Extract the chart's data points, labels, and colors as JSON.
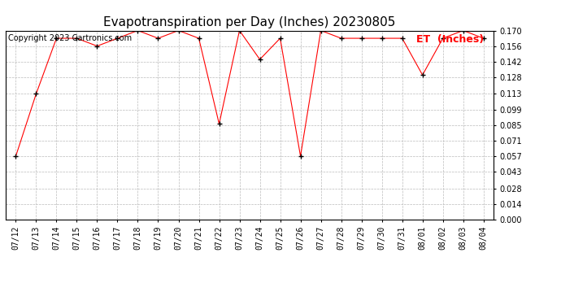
{
  "title": "Evapotranspiration per Day (Inches) 20230805",
  "copyright_text": "Copyright 2023 Cartronics.com",
  "legend_label": "ET  (Inches)",
  "dates": [
    "07/12",
    "07/13",
    "07/14",
    "07/15",
    "07/16",
    "07/17",
    "07/18",
    "07/19",
    "07/20",
    "07/21",
    "07/22",
    "07/23",
    "07/24",
    "07/25",
    "07/26",
    "07/27",
    "07/28",
    "07/29",
    "07/30",
    "07/31",
    "08/01",
    "08/02",
    "08/03",
    "08/04"
  ],
  "values": [
    0.057,
    0.113,
    0.163,
    0.163,
    0.156,
    0.163,
    0.17,
    0.163,
    0.17,
    0.163,
    0.086,
    0.17,
    0.144,
    0.163,
    0.057,
    0.17,
    0.163,
    0.163,
    0.163,
    0.163,
    0.13,
    0.163,
    0.17,
    0.163
  ],
  "line_color": "red",
  "marker": "+",
  "marker_color": "black",
  "ylim": [
    0.0,
    0.17
  ],
  "yticks": [
    0.0,
    0.014,
    0.028,
    0.043,
    0.057,
    0.071,
    0.085,
    0.099,
    0.113,
    0.128,
    0.142,
    0.156,
    0.17
  ],
  "background_color": "#ffffff",
  "grid_color": "#bbbbbb",
  "title_fontsize": 11,
  "legend_fontsize": 9,
  "copyright_fontsize": 7,
  "axis_tick_fontsize": 7,
  "ytick_fontsize": 7,
  "legend_color": "red"
}
